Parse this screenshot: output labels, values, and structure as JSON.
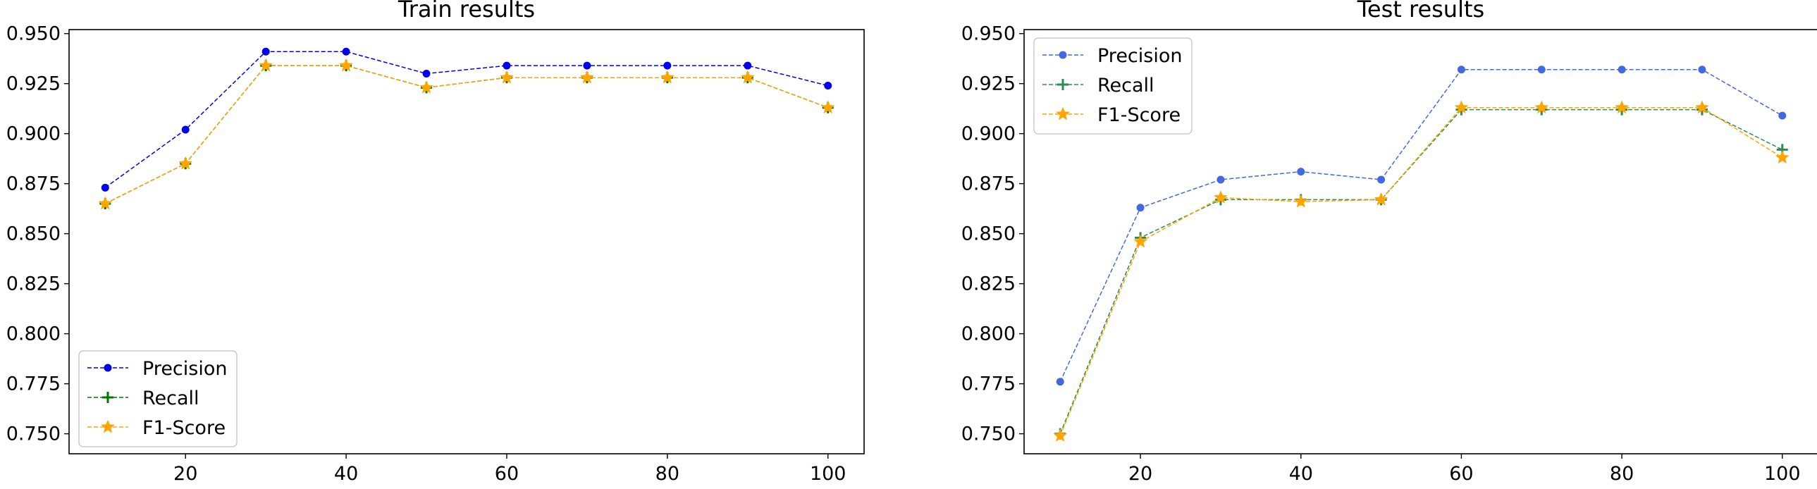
{
  "chart_data": [
    {
      "type": "line",
      "title": "Train results",
      "xlabel": "",
      "ylabel": "",
      "xlim": [
        5.5,
        104.5
      ],
      "ylim": [
        0.74,
        0.952
      ],
      "xticks": [
        "20",
        "40",
        "60",
        "80",
        "100"
      ],
      "yticks": [
        "0.750",
        "0.775",
        "0.800",
        "0.825",
        "0.850",
        "0.875",
        "0.900",
        "0.925",
        "0.950"
      ],
      "grid": false,
      "legend_position": "lower left",
      "x": [
        10,
        20,
        30,
        40,
        50,
        60,
        70,
        80,
        90,
        100
      ],
      "series": [
        {
          "name": "Precision",
          "color": "#0000ee",
          "marker": "dot",
          "values": [
            0.873,
            0.902,
            0.941,
            0.941,
            0.93,
            0.934,
            0.934,
            0.934,
            0.934,
            0.924
          ]
        },
        {
          "name": "Recall",
          "color": "#007700",
          "marker": "plus",
          "values": [
            0.865,
            0.885,
            0.934,
            0.934,
            0.923,
            0.928,
            0.928,
            0.928,
            0.928,
            0.913
          ]
        },
        {
          "name": "F1-Score",
          "color": "#ffa500",
          "marker": "star",
          "values": [
            0.865,
            0.885,
            0.934,
            0.934,
            0.923,
            0.928,
            0.928,
            0.928,
            0.928,
            0.913
          ]
        }
      ]
    },
    {
      "type": "line",
      "title": "Test results",
      "xlabel": "",
      "ylabel": "",
      "xlim": [
        5.5,
        104.5
      ],
      "ylim": [
        0.74,
        0.952
      ],
      "xticks": [
        "20",
        "40",
        "60",
        "80",
        "100"
      ],
      "yticks": [
        "0.750",
        "0.775",
        "0.800",
        "0.825",
        "0.850",
        "0.875",
        "0.900",
        "0.925",
        "0.950"
      ],
      "grid": false,
      "legend_position": "upper left",
      "x": [
        10,
        20,
        30,
        40,
        50,
        60,
        70,
        80,
        90,
        100
      ],
      "series": [
        {
          "name": "Precision",
          "color": "#4169e1",
          "marker": "dot",
          "values": [
            0.776,
            0.863,
            0.877,
            0.881,
            0.877,
            0.932,
            0.932,
            0.932,
            0.932,
            0.909
          ]
        },
        {
          "name": "Recall",
          "color": "#2e8b57",
          "marker": "plus",
          "values": [
            0.75,
            0.848,
            0.867,
            0.867,
            0.867,
            0.912,
            0.912,
            0.912,
            0.912,
            0.892
          ]
        },
        {
          "name": "F1-Score",
          "color": "#ffa500",
          "marker": "star",
          "values": [
            0.749,
            0.846,
            0.868,
            0.866,
            0.867,
            0.913,
            0.913,
            0.913,
            0.913,
            0.888
          ]
        }
      ]
    }
  ]
}
